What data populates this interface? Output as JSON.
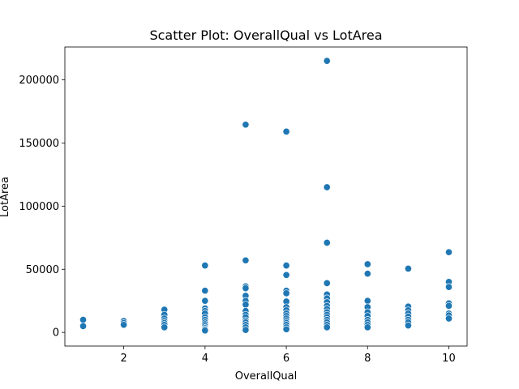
{
  "chart_data": {
    "type": "scatter",
    "title": "Scatter Plot: OverallQual vs LotArea",
    "xlabel": "OverallQual",
    "ylabel": "LotArea",
    "xlim": [
      0.55,
      10.45
    ],
    "ylim": [
      -10800,
      226000
    ],
    "xticks": [
      2,
      4,
      6,
      8,
      10
    ],
    "yticks": [
      0,
      50000,
      100000,
      150000,
      200000
    ],
    "grid": false,
    "legend": "none",
    "point_color": "#1f77b4",
    "point_edge_color": "#ffffff",
    "points": [
      {
        "x": 1,
        "y": 10000
      },
      {
        "x": 1,
        "y": 5000
      },
      {
        "x": 2,
        "y": 9000
      },
      {
        "x": 2,
        "y": 7500
      },
      {
        "x": 2,
        "y": 6000
      },
      {
        "x": 3,
        "y": 18000
      },
      {
        "x": 3,
        "y": 14000
      },
      {
        "x": 3,
        "y": 11000
      },
      {
        "x": 3,
        "y": 9000
      },
      {
        "x": 3,
        "y": 7500
      },
      {
        "x": 3,
        "y": 6000
      },
      {
        "x": 3,
        "y": 4000
      },
      {
        "x": 4,
        "y": 53000
      },
      {
        "x": 4,
        "y": 33000
      },
      {
        "x": 4,
        "y": 25000
      },
      {
        "x": 4,
        "y": 19000
      },
      {
        "x": 4,
        "y": 17000
      },
      {
        "x": 4,
        "y": 15000
      },
      {
        "x": 4,
        "y": 12000
      },
      {
        "x": 4,
        "y": 10000
      },
      {
        "x": 4,
        "y": 8000
      },
      {
        "x": 4,
        "y": 6500
      },
      {
        "x": 4,
        "y": 5000
      },
      {
        "x": 4,
        "y": 3500
      },
      {
        "x": 4,
        "y": 2500
      },
      {
        "x": 4,
        "y": 1500
      },
      {
        "x": 5,
        "y": 164500
      },
      {
        "x": 5,
        "y": 57000
      },
      {
        "x": 5,
        "y": 36500
      },
      {
        "x": 5,
        "y": 35000
      },
      {
        "x": 5,
        "y": 29000
      },
      {
        "x": 5,
        "y": 25000
      },
      {
        "x": 5,
        "y": 22000
      },
      {
        "x": 5,
        "y": 17000
      },
      {
        "x": 5,
        "y": 14000
      },
      {
        "x": 5,
        "y": 12000
      },
      {
        "x": 5,
        "y": 9500
      },
      {
        "x": 5,
        "y": 8000
      },
      {
        "x": 5,
        "y": 6000
      },
      {
        "x": 5,
        "y": 4000
      },
      {
        "x": 5,
        "y": 2000
      },
      {
        "x": 6,
        "y": 159000
      },
      {
        "x": 6,
        "y": 53000
      },
      {
        "x": 6,
        "y": 45500
      },
      {
        "x": 6,
        "y": 33000
      },
      {
        "x": 6,
        "y": 31000
      },
      {
        "x": 6,
        "y": 24500
      },
      {
        "x": 6,
        "y": 20000
      },
      {
        "x": 6,
        "y": 17500
      },
      {
        "x": 6,
        "y": 15000
      },
      {
        "x": 6,
        "y": 13000
      },
      {
        "x": 6,
        "y": 11000
      },
      {
        "x": 6,
        "y": 9000
      },
      {
        "x": 6,
        "y": 7500
      },
      {
        "x": 6,
        "y": 6000
      },
      {
        "x": 6,
        "y": 4000
      },
      {
        "x": 6,
        "y": 2500
      },
      {
        "x": 7,
        "y": 215000
      },
      {
        "x": 7,
        "y": 115000
      },
      {
        "x": 7,
        "y": 71000
      },
      {
        "x": 7,
        "y": 39000
      },
      {
        "x": 7,
        "y": 30000
      },
      {
        "x": 7,
        "y": 27000
      },
      {
        "x": 7,
        "y": 24000
      },
      {
        "x": 7,
        "y": 21000
      },
      {
        "x": 7,
        "y": 18500
      },
      {
        "x": 7,
        "y": 16000
      },
      {
        "x": 7,
        "y": 14000
      },
      {
        "x": 7,
        "y": 12000
      },
      {
        "x": 7,
        "y": 10000
      },
      {
        "x": 7,
        "y": 8000
      },
      {
        "x": 7,
        "y": 6000
      },
      {
        "x": 7,
        "y": 4000
      },
      {
        "x": 8,
        "y": 54000
      },
      {
        "x": 8,
        "y": 46500
      },
      {
        "x": 8,
        "y": 25000
      },
      {
        "x": 8,
        "y": 20000
      },
      {
        "x": 8,
        "y": 16000
      },
      {
        "x": 8,
        "y": 13000
      },
      {
        "x": 8,
        "y": 10000
      },
      {
        "x": 8,
        "y": 8000
      },
      {
        "x": 8,
        "y": 6000
      },
      {
        "x": 8,
        "y": 4000
      },
      {
        "x": 9,
        "y": 50500
      },
      {
        "x": 9,
        "y": 20500
      },
      {
        "x": 9,
        "y": 17500
      },
      {
        "x": 9,
        "y": 15000
      },
      {
        "x": 9,
        "y": 12500
      },
      {
        "x": 9,
        "y": 10000
      },
      {
        "x": 9,
        "y": 8000
      },
      {
        "x": 9,
        "y": 5500
      },
      {
        "x": 10,
        "y": 63500
      },
      {
        "x": 10,
        "y": 40000
      },
      {
        "x": 10,
        "y": 36000
      },
      {
        "x": 10,
        "y": 23000
      },
      {
        "x": 10,
        "y": 21000
      },
      {
        "x": 10,
        "y": 15000
      },
      {
        "x": 10,
        "y": 13500
      },
      {
        "x": 10,
        "y": 11000
      }
    ]
  }
}
